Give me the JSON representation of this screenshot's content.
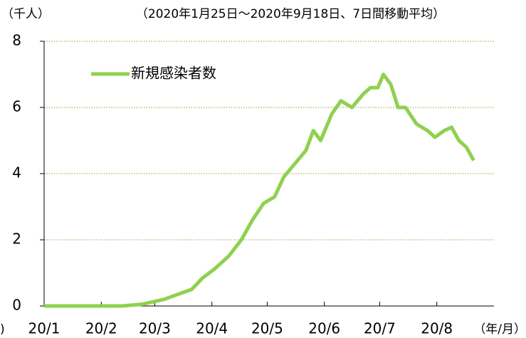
{
  "chart_data": {
    "type": "line",
    "y_unit_label": "（千人）",
    "subtitle": "（2020年1月25日～2020年9月18日、7日間移動平均）",
    "x_unit_label": "（年/月）",
    "left_fragment": ")",
    "x": [
      "2020-01-01",
      "2020-02-12",
      "2020-02-23",
      "2020-03-06",
      "2020-03-15",
      "2020-03-21",
      "2020-03-27",
      "2020-04-02",
      "2020-04-10",
      "2020-04-17",
      "2020-04-23",
      "2020-04-29",
      "2020-05-05",
      "2020-05-10",
      "2020-05-16",
      "2020-05-22",
      "2020-05-26",
      "2020-05-30",
      "2020-06-05",
      "2020-06-10",
      "2020-06-16",
      "2020-06-22",
      "2020-06-26",
      "2020-06-30",
      "2020-07-03",
      "2020-07-07",
      "2020-07-11",
      "2020-07-15",
      "2020-07-21",
      "2020-07-27",
      "2020-07-31",
      "2020-08-05",
      "2020-08-09",
      "2020-08-13",
      "2020-08-17",
      "2020-08-21"
    ],
    "series": [
      {
        "name": "新規感染者数",
        "color": "#8fd14f",
        "values": [
          0,
          0,
          0.05,
          0.2,
          0.38,
          0.5,
          0.85,
          1.1,
          1.5,
          2.0,
          2.6,
          3.1,
          3.3,
          3.9,
          4.3,
          4.7,
          5.3,
          5.0,
          5.8,
          6.2,
          6.0,
          6.4,
          6.6,
          6.6,
          7.0,
          6.7,
          6.0,
          6.0,
          5.5,
          5.3,
          5.1,
          5.3,
          5.4,
          5.0,
          4.8,
          4.4
        ]
      }
    ],
    "xlim": [
      "2020-01-01",
      "2020-09-01"
    ],
    "xticks": [
      {
        "value": "2020-01-01",
        "label": "20/1"
      },
      {
        "value": "2020-02-01",
        "label": "20/2"
      },
      {
        "value": "2020-03-01",
        "label": "20/3"
      },
      {
        "value": "2020-04-01",
        "label": "20/4"
      },
      {
        "value": "2020-05-01",
        "label": "20/5"
      },
      {
        "value": "2020-06-01",
        "label": "20/6"
      },
      {
        "value": "2020-07-01",
        "label": "20/7"
      },
      {
        "value": "2020-08-01",
        "label": "20/8"
      }
    ],
    "ylim": [
      0,
      8
    ],
    "yticks": [
      0,
      2,
      4,
      6,
      8
    ],
    "grid": true,
    "legend": "upper left"
  }
}
